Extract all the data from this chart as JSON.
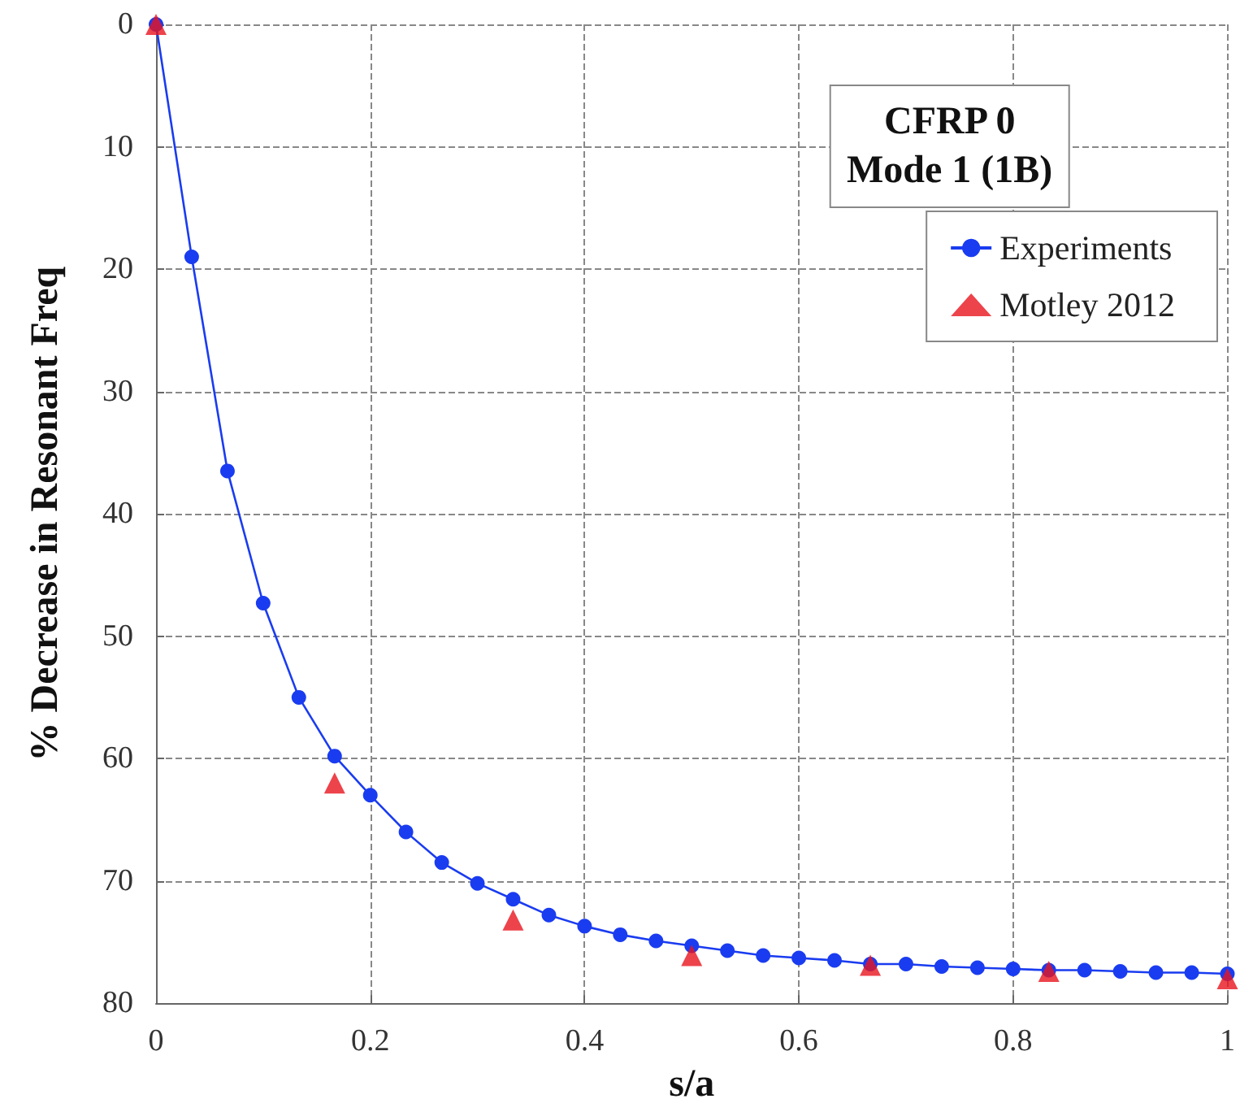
{
  "chart_data": {
    "type": "line",
    "title": "CFRP 0\nMode 1 (1B)",
    "xlabel": "s/a",
    "ylabel": "% Decrease in Resonant Freq",
    "xlim": [
      0,
      1
    ],
    "xticks": [
      0,
      0.2,
      0.4,
      0.6,
      0.8,
      1
    ],
    "ylim": [
      80,
      0
    ],
    "yticks": [
      0,
      10,
      20,
      30,
      40,
      50,
      60,
      70,
      80
    ],
    "grid": true,
    "legend": "top right",
    "series": [
      {
        "name": "Experiments",
        "marker": "circle",
        "line_style": "solid",
        "color": "#1a3cf0",
        "x": [
          0,
          0.0333,
          0.0667,
          0.1,
          0.1333,
          0.1667,
          0.2,
          0.2333,
          0.2667,
          0.3,
          0.3333,
          0.3667,
          0.4,
          0.4333,
          0.4667,
          0.5,
          0.5333,
          0.5667,
          0.6,
          0.6333,
          0.6667,
          0.7,
          0.7333,
          0.7667,
          0.8,
          0.8333,
          0.8667,
          0.9,
          0.9333,
          0.9667,
          1
        ],
        "values": [
          0,
          19,
          36.5,
          47.3,
          55,
          59.8,
          63,
          66,
          68.5,
          70.2,
          71.5,
          72.8,
          73.7,
          74.4,
          74.9,
          75.3,
          75.7,
          76.1,
          76.3,
          76.5,
          76.8,
          76.8,
          77.0,
          77.1,
          77.2,
          77.3,
          77.3,
          77.4,
          77.5,
          77.5,
          77.6
        ]
      },
      {
        "name": "Motley 2012",
        "type": "scatter",
        "marker": "triangle",
        "color": "#e8141e",
        "x": [
          0,
          0.1667,
          0.3333,
          0.5,
          0.6667,
          0.8333,
          1
        ],
        "values": [
          0,
          62,
          73.2,
          76.1,
          76.9,
          77.4,
          78
        ]
      }
    ]
  }
}
